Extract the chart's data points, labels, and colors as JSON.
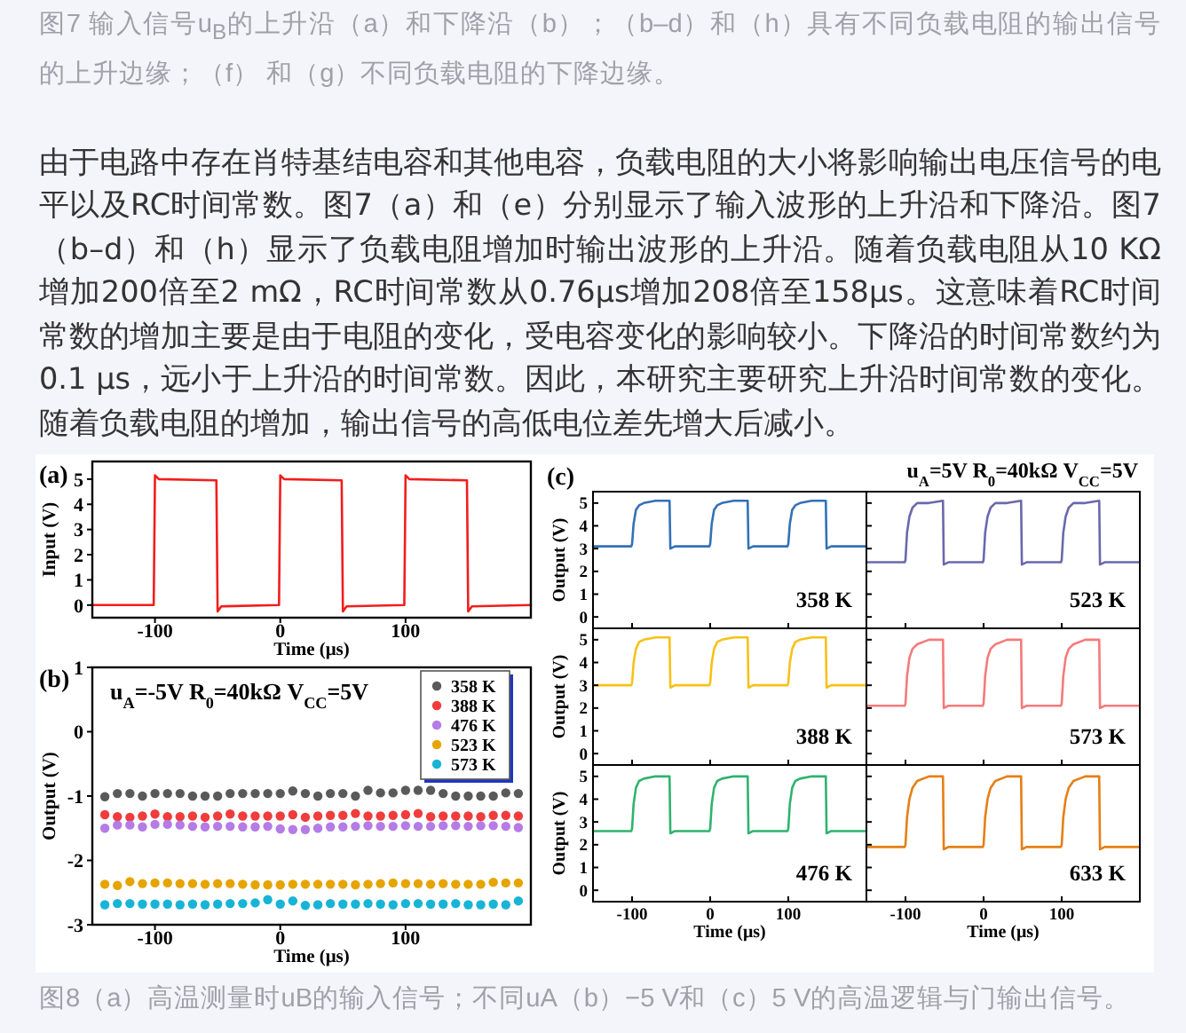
{
  "chart_data": [
    {
      "type": "other",
      "annotations": [
        "图7 输入信号u$_{B}$的上升沿（a）和下降沿（b）；（b–d）和（h）具有不同负载电阻的输出信号的上升边缘；（f） 和（g）不同负载电阻的下降边缘。",
        "由于电路中存在肖特基结电容和其他电容，负载电阻的大小将影响输出电压信号的电平以及RC时间常数。图7（a）和（e）分别显示了输入波形的上升沿和下降沿。图7（b–d）和（h）显示了负载电阻增加时输出波形的上升沿。随着负载电阻从10 KΩ增加200倍至2 mΩ，RC时间常数从0.76μs增加208倍至158μs。这意味着RC时间常数的增加主要是由于电阻的变化，受电容变化的影响较小。下降沿的时间常数约为0.1 μs，远小于上升沿的时间常数。因此，本研究主要研究上升沿时间常数的变化。随着负载电阻的增加，输出信号的高低电位差先增大后减小。"
      ]
    },
    {
      "type": "line",
      "title": "(a)",
      "xlabel": "Time (μs)",
      "ylabel": "Input (V)",
      "x": [
        -150,
        -101,
        -100,
        -97,
        -51,
        -50,
        -47,
        -1,
        0,
        3,
        49,
        50,
        53,
        99,
        100,
        103,
        149,
        150,
        153,
        200
      ],
      "values": [
        0,
        0,
        5.15,
        5.0,
        4.95,
        -0.25,
        -0.05,
        0,
        5.15,
        5.0,
        4.95,
        -0.25,
        -0.05,
        0,
        5.15,
        5.0,
        4.95,
        -0.25,
        -0.05,
        0
      ],
      "color": "#f21d1d",
      "xlim": [
        -150,
        200
      ],
      "ylim": [
        -0.5,
        5.7
      ],
      "xticks": [
        -100,
        0,
        100
      ],
      "yticks": [
        0,
        1,
        2,
        3,
        4,
        5
      ]
    },
    {
      "type": "scatter",
      "title": "(b)",
      "xlabel": "Time (μs)",
      "ylabel": "Output (V)",
      "annotations": [
        "u$_{A}$=-5V R$_{0}$=40kΩ V$_{CC}$=5V"
      ],
      "x": [
        -140,
        -130,
        -120,
        -110,
        -100,
        -90,
        -80,
        -70,
        -60,
        -50,
        -40,
        -30,
        -20,
        -10,
        0,
        10,
        20,
        30,
        40,
        50,
        60,
        70,
        80,
        90,
        100,
        110,
        120,
        130,
        140,
        150,
        160,
        170,
        180,
        190
      ],
      "series": [
        {
          "name": "358 K",
          "color": "#5a5a5a",
          "values": [
            -1.01,
            -0.96,
            -0.96,
            -1.0,
            -0.96,
            -0.96,
            -0.96,
            -1.0,
            -1.0,
            -1.0,
            -0.96,
            -0.96,
            -0.96,
            -0.96,
            -0.96,
            -0.92,
            -0.96,
            -1.0,
            -0.96,
            -0.96,
            -1.0,
            -0.91,
            -0.95,
            -0.95,
            -0.91,
            -0.91,
            -0.91,
            -0.96,
            -1.0,
            -1.0,
            -1.0,
            -1.0,
            -0.95,
            -0.96
          ]
        },
        {
          "name": "388 K",
          "color": "#f03c3c",
          "values": [
            -1.29,
            -1.32,
            -1.33,
            -1.31,
            -1.28,
            -1.32,
            -1.32,
            -1.31,
            -1.33,
            -1.31,
            -1.28,
            -1.31,
            -1.31,
            -1.31,
            -1.31,
            -1.29,
            -1.33,
            -1.31,
            -1.3,
            -1.3,
            -1.27,
            -1.31,
            -1.31,
            -1.3,
            -1.29,
            -1.27,
            -1.32,
            -1.31,
            -1.31,
            -1.31,
            -1.32,
            -1.3,
            -1.3,
            -1.31
          ]
        },
        {
          "name": "476 K",
          "color": "#b57be6",
          "values": [
            -1.5,
            -1.45,
            -1.45,
            -1.48,
            -1.44,
            -1.44,
            -1.45,
            -1.47,
            -1.48,
            -1.47,
            -1.47,
            -1.48,
            -1.48,
            -1.47,
            -1.51,
            -1.52,
            -1.52,
            -1.5,
            -1.48,
            -1.48,
            -1.47,
            -1.46,
            -1.47,
            -1.47,
            -1.46,
            -1.47,
            -1.47,
            -1.46,
            -1.46,
            -1.47,
            -1.46,
            -1.46,
            -1.47,
            -1.49
          ]
        },
        {
          "name": "523 K",
          "color": "#e6a400",
          "values": [
            -2.37,
            -2.39,
            -2.33,
            -2.36,
            -2.35,
            -2.35,
            -2.36,
            -2.36,
            -2.37,
            -2.36,
            -2.36,
            -2.37,
            -2.38,
            -2.38,
            -2.38,
            -2.37,
            -2.37,
            -2.37,
            -2.37,
            -2.37,
            -2.38,
            -2.37,
            -2.36,
            -2.35,
            -2.36,
            -2.36,
            -2.37,
            -2.36,
            -2.37,
            -2.37,
            -2.37,
            -2.34,
            -2.35,
            -2.35
          ]
        },
        {
          "name": "573 K",
          "color": "#17b4d6",
          "values": [
            -2.69,
            -2.67,
            -2.67,
            -2.68,
            -2.68,
            -2.68,
            -2.69,
            -2.68,
            -2.69,
            -2.68,
            -2.67,
            -2.67,
            -2.66,
            -2.61,
            -2.68,
            -2.63,
            -2.7,
            -2.69,
            -2.67,
            -2.68,
            -2.68,
            -2.67,
            -2.68,
            -2.69,
            -2.67,
            -2.67,
            -2.68,
            -2.68,
            -2.67,
            -2.69,
            -2.69,
            -2.68,
            -2.69,
            -2.63
          ]
        }
      ],
      "xlim": [
        -150,
        200
      ],
      "ylim": [
        -3,
        1
      ],
      "xticks": [
        -100,
        0,
        100
      ],
      "yticks": [
        -3,
        -2,
        -1,
        0,
        1
      ],
      "legend": "top right",
      "marker": "circle"
    },
    {
      "type": "line",
      "title": "(c)",
      "ylabel": "Output (V)",
      "x": [
        -150,
        -101,
        -100,
        -98,
        -95,
        -91,
        -85,
        -70,
        -52,
        -51,
        -45,
        -1,
        0,
        2,
        5,
        9,
        15,
        30,
        48,
        49,
        55,
        99,
        100,
        102,
        105,
        109,
        115,
        130,
        148,
        149,
        155,
        200
      ],
      "series": [
        {
          "name": "358 K",
          "color": "#3371b8",
          "values": [
            3.1,
            3.1,
            3.2,
            4.1,
            4.7,
            4.9,
            5.0,
            5.1,
            5.1,
            3.0,
            3.1,
            3.1,
            3.2,
            4.1,
            4.7,
            4.9,
            5.0,
            5.1,
            5.1,
            3.0,
            3.1,
            3.1,
            3.2,
            4.1,
            4.7,
            4.9,
            5.0,
            5.1,
            5.1,
            3.0,
            3.1,
            3.1
          ]
        }
      ],
      "xlim": [
        -150,
        200
      ],
      "ylim": [
        -0.5,
        5.5
      ],
      "xticks": [
        -100,
        0,
        100
      ],
      "yticks": [
        0,
        1,
        2,
        3,
        4,
        5
      ],
      "tick_labels": "y"
    },
    {
      "type": "line",
      "annotations": [
        "u$_{A}$=5V R$_{0}$=40kΩ V$_{CC}$=5V"
      ],
      "x": [
        -150,
        -101,
        -100,
        -98,
        -95,
        -91,
        -85,
        -70,
        -52,
        -51,
        -45,
        -1,
        0,
        2,
        5,
        9,
        15,
        30,
        48,
        49,
        55,
        99,
        100,
        102,
        105,
        109,
        115,
        130,
        148,
        149,
        155,
        200
      ],
      "series": [
        {
          "name": "523 K",
          "color": "#6a68ad",
          "values": [
            2.4,
            2.4,
            2.5,
            3.7,
            4.4,
            4.8,
            5.0,
            5.0,
            5.1,
            2.3,
            2.4,
            2.4,
            2.5,
            3.7,
            4.4,
            4.8,
            5.0,
            5.0,
            5.1,
            2.3,
            2.4,
            2.4,
            2.5,
            3.7,
            4.4,
            4.8,
            5.0,
            5.0,
            5.1,
            2.3,
            2.4,
            2.4
          ]
        }
      ],
      "xlim": [
        -150,
        200
      ],
      "ylim": [
        -0.5,
        5.5
      ],
      "xticks": [
        -100,
        0,
        100
      ],
      "yticks": [
        0,
        1,
        2,
        3,
        4,
        5
      ],
      "tick_labels": false
    },
    {
      "type": "line",
      "ylabel": "Output (V)",
      "x": [
        -150,
        -101,
        -100,
        -98,
        -95,
        -91,
        -85,
        -70,
        -52,
        -51,
        -45,
        -1,
        0,
        2,
        5,
        9,
        15,
        30,
        48,
        49,
        55,
        99,
        100,
        102,
        105,
        109,
        115,
        130,
        148,
        149,
        155,
        200
      ],
      "series": [
        {
          "name": "388 K",
          "color": "#f7c117",
          "values": [
            3.0,
            3.0,
            3.1,
            4.0,
            4.6,
            4.9,
            5.0,
            5.1,
            5.1,
            2.9,
            3.0,
            3.0,
            3.1,
            4.0,
            4.6,
            4.9,
            5.0,
            5.1,
            5.1,
            2.9,
            3.0,
            3.0,
            3.1,
            4.0,
            4.6,
            4.9,
            5.0,
            5.1,
            5.1,
            2.9,
            3.0,
            3.0
          ]
        }
      ],
      "xlim": [
        -150,
        200
      ],
      "ylim": [
        -0.5,
        5.5
      ],
      "xticks": [
        -100,
        0,
        100
      ],
      "yticks": [
        0,
        1,
        2,
        3,
        4,
        5
      ],
      "tick_labels": "y"
    },
    {
      "type": "line",
      "x": [
        -150,
        -101,
        -100,
        -98,
        -95,
        -91,
        -85,
        -70,
        -52,
        -51,
        -45,
        -1,
        0,
        2,
        5,
        9,
        15,
        30,
        48,
        49,
        55,
        99,
        100,
        102,
        105,
        109,
        115,
        130,
        148,
        149,
        155,
        200
      ],
      "series": [
        {
          "name": "573 K",
          "color": "#f57a7a",
          "values": [
            2.1,
            2.1,
            2.2,
            3.4,
            4.2,
            4.6,
            4.8,
            5.0,
            5.0,
            2.0,
            2.1,
            2.1,
            2.2,
            3.4,
            4.2,
            4.6,
            4.8,
            5.0,
            5.0,
            2.0,
            2.1,
            2.1,
            2.2,
            3.4,
            4.2,
            4.6,
            4.8,
            5.0,
            5.0,
            2.0,
            2.1,
            2.1
          ]
        }
      ],
      "xlim": [
        -150,
        200
      ],
      "ylim": [
        -0.5,
        5.5
      ],
      "xticks": [
        -100,
        0,
        100
      ],
      "yticks": [
        0,
        1,
        2,
        3,
        4,
        5
      ],
      "tick_labels": false
    },
    {
      "type": "line",
      "xlabel": "Time (μs)",
      "ylabel": "Output (V)",
      "x": [
        -150,
        -101,
        -100,
        -98,
        -95,
        -91,
        -85,
        -70,
        -52,
        -51,
        -45,
        -1,
        0,
        2,
        5,
        9,
        15,
        30,
        48,
        49,
        55,
        99,
        100,
        102,
        105,
        109,
        115,
        130,
        148,
        149,
        155,
        200
      ],
      "series": [
        {
          "name": "476 K",
          "color": "#2fb36e",
          "values": [
            2.6,
            2.6,
            2.7,
            3.8,
            4.5,
            4.8,
            4.9,
            5.0,
            5.0,
            2.5,
            2.6,
            2.6,
            2.7,
            3.8,
            4.5,
            4.8,
            4.9,
            5.0,
            5.0,
            2.5,
            2.6,
            2.6,
            2.7,
            3.8,
            4.5,
            4.8,
            4.9,
            5.0,
            5.0,
            2.5,
            2.6,
            2.6
          ]
        }
      ],
      "xlim": [
        -150,
        200
      ],
      "ylim": [
        -0.5,
        5.5
      ],
      "xticks": [
        -100,
        0,
        100
      ],
      "yticks": [
        0,
        1,
        2,
        3,
        4,
        5
      ]
    },
    {
      "type": "line",
      "xlabel": "Time (μs)",
      "x": [
        -150,
        -101,
        -100,
        -98,
        -95,
        -91,
        -85,
        -70,
        -52,
        -51,
        -45,
        -1,
        0,
        2,
        5,
        9,
        15,
        30,
        48,
        49,
        55,
        99,
        100,
        102,
        105,
        109,
        115,
        130,
        148,
        149,
        155,
        200
      ],
      "series": [
        {
          "name": "633 K",
          "color": "#e57f16",
          "values": [
            1.9,
            1.9,
            2.0,
            3.2,
            4.0,
            4.5,
            4.8,
            5.0,
            5.0,
            1.8,
            1.9,
            1.9,
            2.0,
            3.2,
            4.0,
            4.5,
            4.8,
            5.0,
            5.0,
            1.8,
            1.9,
            1.9,
            2.0,
            3.2,
            4.0,
            4.5,
            4.8,
            5.0,
            5.0,
            1.8,
            1.9,
            1.9
          ]
        }
      ],
      "xlim": [
        -150,
        200
      ],
      "ylim": [
        -0.5,
        5.5
      ],
      "xticks": [
        -100,
        0,
        100
      ],
      "yticks": [
        0,
        1,
        2,
        3,
        4,
        5
      ],
      "tick_labels": "x"
    },
    {
      "type": "other",
      "annotations": [
        "图8（a）高温测量时uB的输入信号；不同uA（b）−5 V和（c）5 V的高温逻辑与门输出信号。"
      ]
    }
  ]
}
